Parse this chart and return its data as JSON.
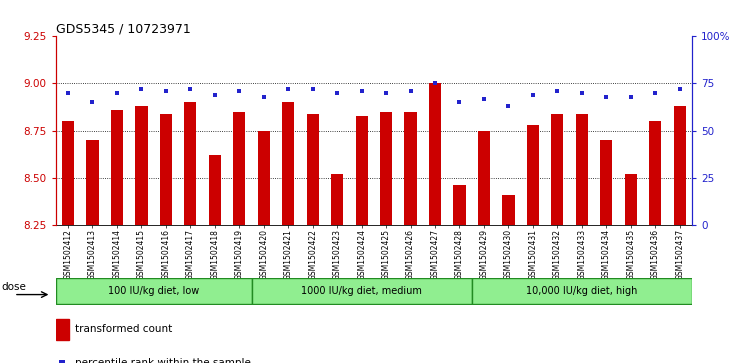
{
  "title": "GDS5345 / 10723971",
  "samples": [
    "GSM1502412",
    "GSM1502413",
    "GSM1502414",
    "GSM1502415",
    "GSM1502416",
    "GSM1502417",
    "GSM1502418",
    "GSM1502419",
    "GSM1502420",
    "GSM1502421",
    "GSM1502422",
    "GSM1502423",
    "GSM1502424",
    "GSM1502425",
    "GSM1502426",
    "GSM1502427",
    "GSM1502428",
    "GSM1502429",
    "GSM1502430",
    "GSM1502431",
    "GSM1502432",
    "GSM1502433",
    "GSM1502434",
    "GSM1502435",
    "GSM1502436",
    "GSM1502437"
  ],
  "bar_values": [
    8.8,
    8.7,
    8.86,
    8.88,
    8.84,
    8.9,
    8.62,
    8.85,
    8.75,
    8.9,
    8.84,
    8.52,
    8.83,
    8.85,
    8.85,
    9.0,
    8.46,
    8.75,
    8.41,
    8.78,
    8.84,
    8.84,
    8.7,
    8.52,
    8.8,
    8.88
  ],
  "percentile_values": [
    70,
    65,
    70,
    72,
    71,
    72,
    69,
    71,
    68,
    72,
    72,
    70,
    71,
    70,
    71,
    75,
    65,
    67,
    63,
    69,
    71,
    70,
    68,
    68,
    70,
    72
  ],
  "groups": [
    {
      "label": "100 IU/kg diet, low",
      "start": 0,
      "end": 8
    },
    {
      "label": "1000 IU/kg diet, medium",
      "start": 8,
      "end": 17
    },
    {
      "label": "10,000 IU/kg diet, high",
      "start": 17,
      "end": 26
    }
  ],
  "ylim": [
    8.25,
    9.25
  ],
  "yticks": [
    8.25,
    8.5,
    8.75,
    9.0,
    9.25
  ],
  "right_yticks": [
    0,
    25,
    50,
    75,
    100
  ],
  "bar_color": "#CC0000",
  "dot_color": "#2222CC",
  "plot_bg_color": "#ffffff",
  "group_box_color": "#90EE90",
  "group_border_color": "#228B22",
  "dose_label": "dose",
  "legend_bar_label": "transformed count",
  "legend_dot_label": "percentile rank within the sample",
  "title_fontsize": 9,
  "grid_lines": [
    8.5,
    8.75,
    9.0
  ],
  "bar_width": 0.5
}
